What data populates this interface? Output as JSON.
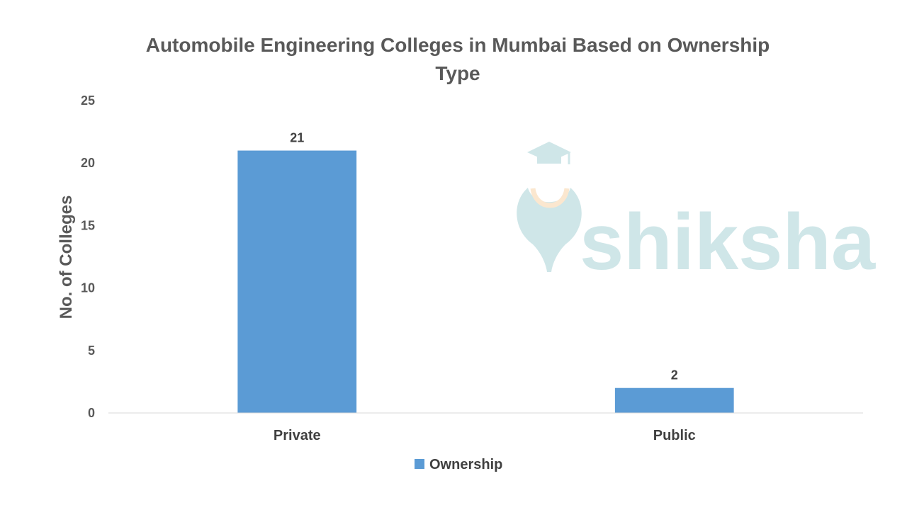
{
  "chart_data": {
    "type": "bar",
    "title": "Automobile Engineering Colleges in Mumbai Based on Ownership Type",
    "title_lines": [
      "Automobile Engineering Colleges in Mumbai Based on Ownership",
      "Type"
    ],
    "categories": [
      "Private",
      "Public"
    ],
    "series": [
      {
        "name": "Ownership",
        "values": [
          21,
          2
        ],
        "color": "#5b9bd5"
      }
    ],
    "xlabel": "",
    "ylabel": "No. of Colleges",
    "ylim": [
      0,
      25
    ],
    "yticks": [
      0,
      5,
      10,
      15,
      20,
      25
    ],
    "data_labels": [
      "21",
      "2"
    ],
    "grid": false,
    "legend_position": "bottom"
  },
  "watermark": {
    "text": "shiksha",
    "color": "#cfe6e8",
    "accent_color": "#fbe7cf"
  }
}
